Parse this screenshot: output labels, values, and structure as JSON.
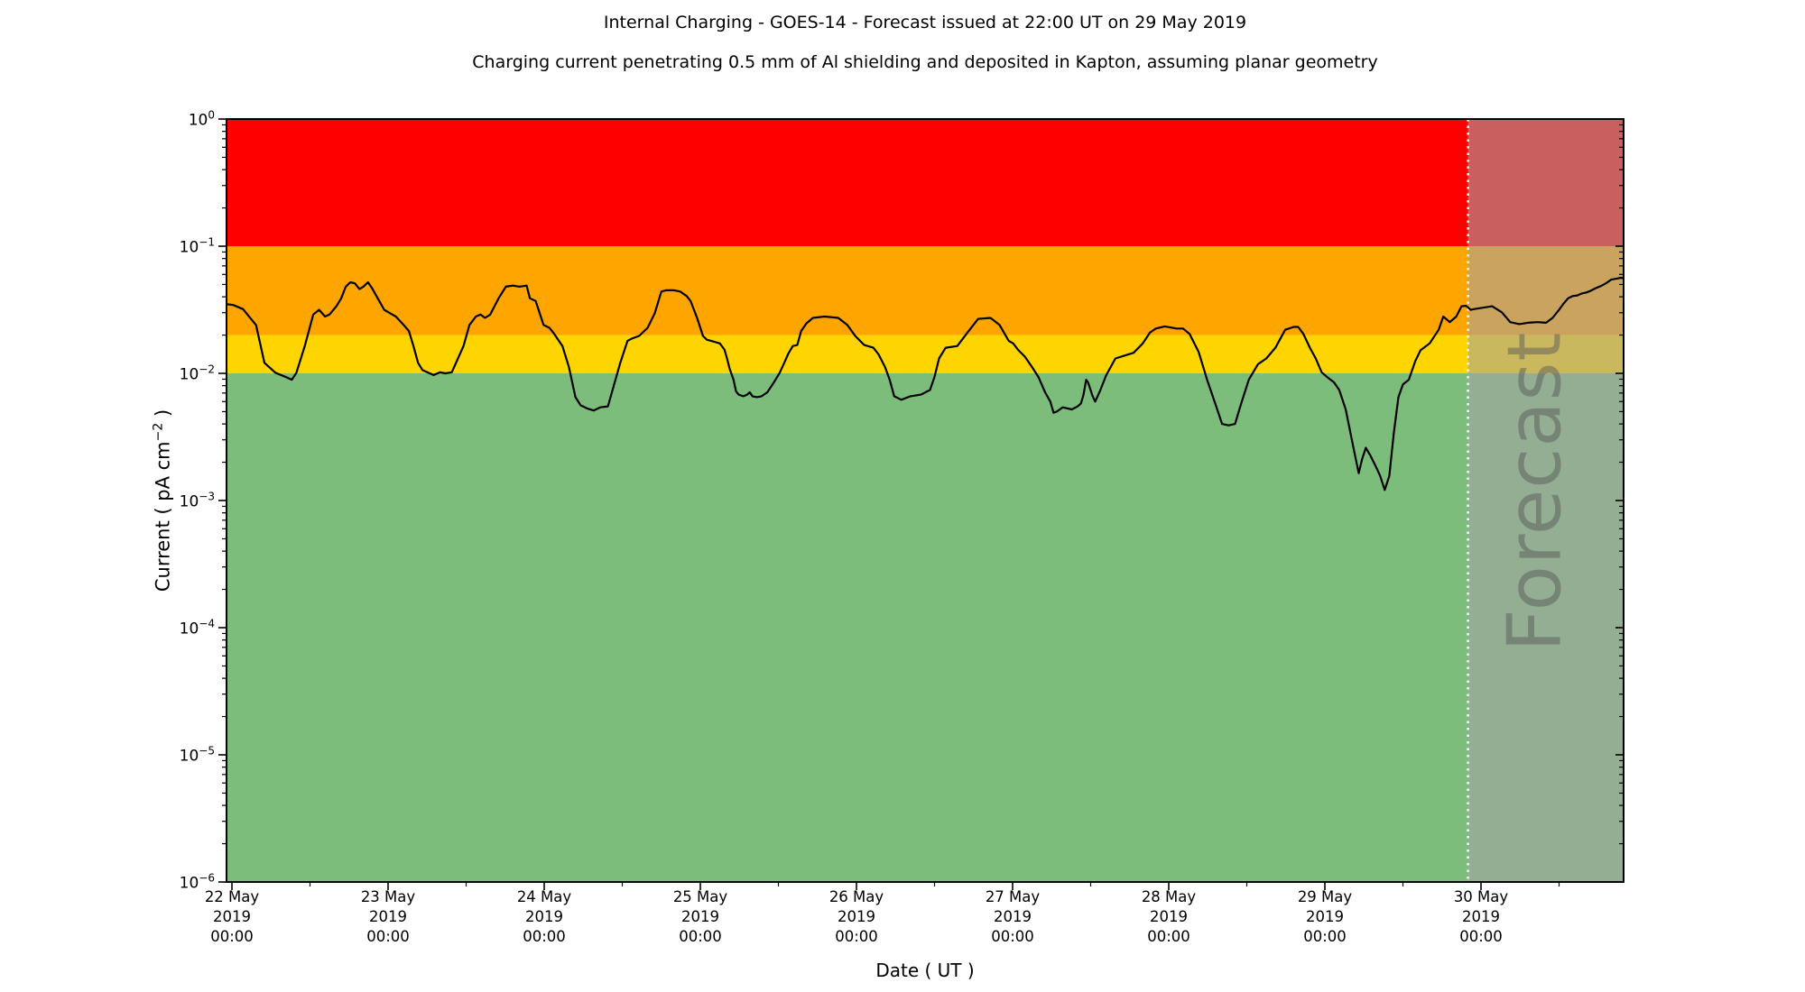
{
  "page": {
    "title": "Internal Charging - GOES-14 - Forecast issued at 22:00 UT on 29 May 2019",
    "subtitle": "Charging current penetrating 0.5 mm of Al shielding and deposited in Kapton, assuming planar geometry"
  },
  "chart_data": {
    "type": "line",
    "title": "Internal Charging - GOES-14 - Forecast issued at 22:00 UT on 29 May 2019",
    "subtitle": "Charging current penetrating 0.5 mm of Al shielding and deposited in Kapton, assuming planar geometry",
    "xlabel": "Date ( UT )",
    "ylabel_parts": {
      "before": "Current ( pA cm",
      "sup": "−2",
      "after": " )"
    },
    "x_axis": {
      "day_labels": [
        "22 May",
        "23 May",
        "24 May",
        "25 May",
        "26 May",
        "27 May",
        "28 May",
        "29 May",
        "30 May"
      ],
      "year_label": "2019",
      "time_label": "00:00",
      "major_tick_every_hours": 24,
      "minor_tick_every_hours": 12,
      "hours_shown": 215,
      "grid": false
    },
    "y_axis": {
      "scale": "log",
      "tick_exponents": [
        0,
        -1,
        -2,
        -3,
        -4,
        -5,
        -6
      ],
      "min": 1e-06,
      "max": 1,
      "unit": "pA cm^-2"
    },
    "bands": [
      {
        "name": "red-alert",
        "vmin": 0.1,
        "vmax": 1,
        "color": "#ff0000"
      },
      {
        "name": "orange-warning",
        "vmin": 0.02,
        "vmax": 0.1,
        "color": "#ffa500"
      },
      {
        "name": "yellow-caution",
        "vmin": 0.01,
        "vmax": 0.02,
        "color": "#ffd500"
      },
      {
        "name": "green-safe",
        "vmin": 1e-06,
        "vmax": 0.01,
        "color": "#7cbd7c"
      }
    ],
    "forecast": {
      "label": "Forecast",
      "issued_text": "22:00 UT on 29 May 2019",
      "start_hours_after_22_may": 190,
      "overlay_color": "rgba(163,163,163,0.58)",
      "divider_color": "#ffffff"
    },
    "series": {
      "name": "internal charging current",
      "color": "#000000",
      "x_unit": "hours after 22 May 2019 00:00 UT",
      "y_unit": "pA cm^-2",
      "points": [
        [
          -0.8,
          0.035
        ],
        [
          0.2,
          0.0345
        ],
        [
          1.7,
          0.032
        ],
        [
          3.7,
          0.024
        ],
        [
          5,
          0.0121
        ],
        [
          6.7,
          0.0101
        ],
        [
          8.2,
          0.0094
        ],
        [
          9.2,
          0.0089
        ],
        [
          9.9,
          0.0101
        ],
        [
          11.2,
          0.0164
        ],
        [
          12.5,
          0.029
        ],
        [
          13.4,
          0.0316
        ],
        [
          14.3,
          0.028
        ],
        [
          15,
          0.029
        ],
        [
          16.1,
          0.034
        ],
        [
          16.8,
          0.039
        ],
        [
          17.5,
          0.048
        ],
        [
          18.2,
          0.052
        ],
        [
          18.9,
          0.051
        ],
        [
          19.6,
          0.046
        ],
        [
          20.2,
          0.048
        ],
        [
          20.9,
          0.052
        ],
        [
          21.5,
          0.047
        ],
        [
          22.4,
          0.039
        ],
        [
          23.4,
          0.0316
        ],
        [
          24.3,
          0.0297
        ],
        [
          25.2,
          0.028
        ],
        [
          26.4,
          0.024
        ],
        [
          27.2,
          0.0215
        ],
        [
          27.9,
          0.0164
        ],
        [
          28.6,
          0.0121
        ],
        [
          29.3,
          0.0106
        ],
        [
          30.2,
          0.0101
        ],
        [
          31,
          0.0097
        ],
        [
          32,
          0.0102
        ],
        [
          32.8,
          0.01
        ],
        [
          33.8,
          0.0102
        ],
        [
          35.6,
          0.0164
        ],
        [
          36.5,
          0.024
        ],
        [
          37.5,
          0.028
        ],
        [
          38.2,
          0.029
        ],
        [
          38.9,
          0.0273
        ],
        [
          39.7,
          0.029
        ],
        [
          41,
          0.039
        ],
        [
          42.1,
          0.048
        ],
        [
          43.2,
          0.049
        ],
        [
          44.2,
          0.048
        ],
        [
          45.3,
          0.049
        ],
        [
          45.8,
          0.039
        ],
        [
          46.7,
          0.037
        ],
        [
          47.9,
          0.024
        ],
        [
          48.8,
          0.0228
        ],
        [
          49.4,
          0.0209
        ],
        [
          50.8,
          0.0164
        ],
        [
          51.8,
          0.0112
        ],
        [
          52.8,
          0.0065
        ],
        [
          53.6,
          0.0056
        ],
        [
          54.6,
          0.0053
        ],
        [
          55.6,
          0.0051
        ],
        [
          56.6,
          0.0054
        ],
        [
          57.8,
          0.0055
        ],
        [
          59.7,
          0.0121
        ],
        [
          60.8,
          0.018
        ],
        [
          61.5,
          0.0188
        ],
        [
          62.6,
          0.0197
        ],
        [
          63.9,
          0.0228
        ],
        [
          65,
          0.0297
        ],
        [
          66,
          0.044
        ],
        [
          66.7,
          0.045
        ],
        [
          68,
          0.045
        ],
        [
          68.9,
          0.044
        ],
        [
          69.9,
          0.0405
        ],
        [
          70.5,
          0.037
        ],
        [
          71.5,
          0.0273
        ],
        [
          72.4,
          0.0197
        ],
        [
          73,
          0.0184
        ],
        [
          74,
          0.0178
        ],
        [
          75,
          0.0172
        ],
        [
          75.7,
          0.0154
        ],
        [
          76.1,
          0.0131
        ],
        [
          76.5,
          0.0109
        ],
        [
          77.1,
          0.0089
        ],
        [
          77.5,
          0.0072
        ],
        [
          77.9,
          0.0068
        ],
        [
          78.6,
          0.0066
        ],
        [
          79.2,
          0.0068
        ],
        [
          79.6,
          0.0071
        ],
        [
          80,
          0.0066
        ],
        [
          80.7,
          0.0065
        ],
        [
          81.4,
          0.0066
        ],
        [
          82.3,
          0.0071
        ],
        [
          83.3,
          0.0085
        ],
        [
          84.2,
          0.0101
        ],
        [
          84.9,
          0.0121
        ],
        [
          85.5,
          0.0142
        ],
        [
          86.2,
          0.0164
        ],
        [
          86.9,
          0.0167
        ],
        [
          87.5,
          0.0215
        ],
        [
          88.3,
          0.0247
        ],
        [
          89.3,
          0.0273
        ],
        [
          91.1,
          0.028
        ],
        [
          93.2,
          0.0273
        ],
        [
          94.6,
          0.024
        ],
        [
          95.8,
          0.0197
        ],
        [
          97.2,
          0.0167
        ],
        [
          98.6,
          0.0159
        ],
        [
          99.4,
          0.0141
        ],
        [
          100.4,
          0.0112
        ],
        [
          101.1,
          0.0089
        ],
        [
          101.8,
          0.0066
        ],
        [
          102.9,
          0.0062
        ],
        [
          104.3,
          0.0066
        ],
        [
          105.9,
          0.0068
        ],
        [
          107.3,
          0.0074
        ],
        [
          108,
          0.0094
        ],
        [
          108.7,
          0.0131
        ],
        [
          109.7,
          0.0159
        ],
        [
          111.5,
          0.0164
        ],
        [
          112.9,
          0.0204
        ],
        [
          114.7,
          0.0268
        ],
        [
          116.6,
          0.0273
        ],
        [
          118,
          0.024
        ],
        [
          119.4,
          0.018
        ],
        [
          120.1,
          0.0172
        ],
        [
          120.8,
          0.0154
        ],
        [
          121.9,
          0.0135
        ],
        [
          123,
          0.0112
        ],
        [
          124,
          0.0093
        ],
        [
          125,
          0.0071
        ],
        [
          125.8,
          0.006
        ],
        [
          126.3,
          0.0049
        ],
        [
          126.8,
          0.005
        ],
        [
          127.7,
          0.0054
        ],
        [
          129.1,
          0.0052
        ],
        [
          130,
          0.0055
        ],
        [
          130.5,
          0.0058
        ],
        [
          130.9,
          0.0068
        ],
        [
          131.3,
          0.0089
        ],
        [
          131.6,
          0.0085
        ],
        [
          132.3,
          0.0066
        ],
        [
          132.7,
          0.006
        ],
        [
          133.4,
          0.0072
        ],
        [
          134.4,
          0.0097
        ],
        [
          135.8,
          0.0131
        ],
        [
          137.2,
          0.0138
        ],
        [
          138.6,
          0.0145
        ],
        [
          140,
          0.0172
        ],
        [
          141.1,
          0.0209
        ],
        [
          142,
          0.0225
        ],
        [
          143.4,
          0.0234
        ],
        [
          145.2,
          0.0225
        ],
        [
          146.2,
          0.0225
        ],
        [
          147.2,
          0.0204
        ],
        [
          148.6,
          0.0147
        ],
        [
          149.9,
          0.0089
        ],
        [
          151.3,
          0.0055
        ],
        [
          152.2,
          0.004
        ],
        [
          153.2,
          0.0039
        ],
        [
          154.2,
          0.004
        ],
        [
          155,
          0.0055
        ],
        [
          156.3,
          0.0089
        ],
        [
          157.7,
          0.0118
        ],
        [
          159,
          0.0131
        ],
        [
          160.4,
          0.0159
        ],
        [
          161.9,
          0.022
        ],
        [
          163.2,
          0.0232
        ],
        [
          163.9,
          0.0232
        ],
        [
          164.7,
          0.0204
        ],
        [
          165.7,
          0.0159
        ],
        [
          166.6,
          0.0131
        ],
        [
          167.5,
          0.0102
        ],
        [
          168.4,
          0.0093
        ],
        [
          169.4,
          0.0085
        ],
        [
          170.2,
          0.0074
        ],
        [
          171.2,
          0.0052
        ],
        [
          172.2,
          0.0029
        ],
        [
          173.2,
          0.00164
        ],
        [
          173.7,
          0.0021
        ],
        [
          174.3,
          0.0026
        ],
        [
          175,
          0.00225
        ],
        [
          175.8,
          0.00187
        ],
        [
          176.5,
          0.00156
        ],
        [
          177.2,
          0.00121
        ],
        [
          177.9,
          0.00156
        ],
        [
          178.6,
          0.0034
        ],
        [
          179.3,
          0.0065
        ],
        [
          180,
          0.0082
        ],
        [
          180.9,
          0.0089
        ],
        [
          181.9,
          0.0125
        ],
        [
          182.7,
          0.0152
        ],
        [
          184.1,
          0.0172
        ],
        [
          185.5,
          0.022
        ],
        [
          186.2,
          0.028
        ],
        [
          187.2,
          0.0253
        ],
        [
          188.2,
          0.028
        ],
        [
          189,
          0.0337
        ],
        [
          189.7,
          0.034
        ],
        [
          190.4,
          0.0316
        ],
        [
          191.2,
          0.0322
        ],
        [
          192.2,
          0.0328
        ],
        [
          193.7,
          0.0337
        ],
        [
          195.2,
          0.0302
        ],
        [
          196.5,
          0.0253
        ],
        [
          197.9,
          0.0244
        ],
        [
          199.2,
          0.025
        ],
        [
          200.7,
          0.0253
        ],
        [
          202,
          0.025
        ],
        [
          203,
          0.0273
        ],
        [
          204,
          0.0316
        ],
        [
          204.7,
          0.0354
        ],
        [
          205.4,
          0.039
        ],
        [
          206.1,
          0.0405
        ],
        [
          206.8,
          0.041
        ],
        [
          207.5,
          0.0425
        ],
        [
          208.2,
          0.0433
        ],
        [
          208.9,
          0.0447
        ],
        [
          209.6,
          0.0467
        ],
        [
          210.4,
          0.0485
        ],
        [
          211.2,
          0.051
        ],
        [
          212,
          0.0546
        ],
        [
          212.8,
          0.0555
        ],
        [
          213.5,
          0.0565
        ],
        [
          214,
          0.056
        ]
      ]
    }
  }
}
